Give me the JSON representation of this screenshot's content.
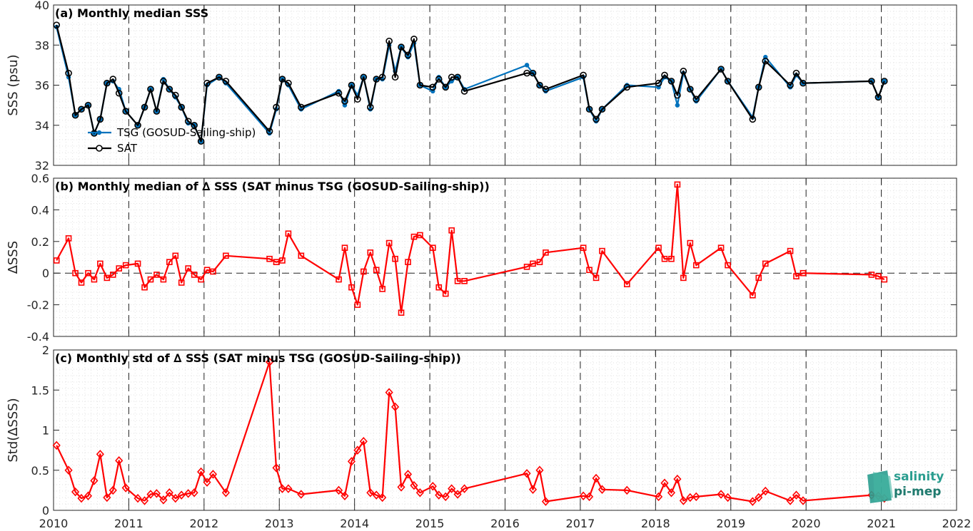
{
  "colors": {
    "tsg": "#0072BD",
    "sat": "#000000",
    "delta": "#FF0000",
    "logo": "#2a9d8f"
  },
  "logo": {
    "line1": "salinity",
    "line2": "pi-mep"
  },
  "x_axis": {
    "range": [
      2010,
      2022
    ],
    "ticks": [
      "2010",
      "2011",
      "2012",
      "2013",
      "2014",
      "2015",
      "2016",
      "2017",
      "2018",
      "2019",
      "2020",
      "2021",
      "2022"
    ]
  },
  "chart_data": [
    {
      "type": "line",
      "title": "(a) Monthly median SSS",
      "ylabel": "SSS (psu)",
      "ylim": [
        32,
        40
      ],
      "yticks": [
        "32",
        "34",
        "36",
        "38",
        "40"
      ],
      "grid": true,
      "legend_position": "bottom-left",
      "series": [
        {
          "name": "TSG (GOSUD-Sailing-ship)",
          "marker": "dot",
          "x": [
            2010.04,
            2010.2,
            2010.29,
            2010.37,
            2010.46,
            2010.54,
            2010.62,
            2010.71,
            2010.79,
            2010.87,
            2010.96,
            2011.12,
            2011.21,
            2011.29,
            2011.37,
            2011.46,
            2011.54,
            2011.62,
            2011.7,
            2011.79,
            2011.87,
            2011.96,
            2012.04,
            2012.2,
            2012.29,
            2012.87,
            2012.96,
            2013.04,
            2013.12,
            2013.29,
            2013.79,
            2013.87,
            2013.96,
            2014.04,
            2014.12,
            2014.21,
            2014.29,
            2014.37,
            2014.46,
            2014.54,
            2014.62,
            2014.71,
            2014.79,
            2014.87,
            2015.04,
            2015.12,
            2015.21,
            2015.29,
            2015.37,
            2015.46,
            2016.29,
            2016.37,
            2016.46,
            2016.54,
            2017.04,
            2017.12,
            2017.21,
            2017.29,
            2017.62,
            2018.04,
            2018.12,
            2018.21,
            2018.29,
            2018.37,
            2018.46,
            2018.54,
            2018.87,
            2018.96,
            2019.29,
            2019.37,
            2019.46,
            2019.79,
            2019.87,
            2019.96,
            2020.87,
            2020.96,
            2021.04
          ],
          "y": [
            38.9,
            36.4,
            34.5,
            34.8,
            35.0,
            33.6,
            34.3,
            36.1,
            36.2,
            35.8,
            34.7,
            34.0,
            34.9,
            35.8,
            34.7,
            36.3,
            35.8,
            35.4,
            34.9,
            34.1,
            34.0,
            33.2,
            36.0,
            36.4,
            36.1,
            33.6,
            34.8,
            36.3,
            36.0,
            34.8,
            35.7,
            35.0,
            36.0,
            35.5,
            36.4,
            34.8,
            36.3,
            36.3,
            38.0,
            36.7,
            37.9,
            37.4,
            38.1,
            36.0,
            35.7,
            36.4,
            35.9,
            36.2,
            36.4,
            35.8,
            37.0,
            36.6,
            36.0,
            35.7,
            36.4,
            34.8,
            34.2,
            34.8,
            36.0,
            35.9,
            36.4,
            36.2,
            35.0,
            36.6,
            35.8,
            35.2,
            36.8,
            36.2,
            34.4,
            35.9,
            37.4,
            35.9,
            36.5,
            36.1,
            36.2,
            35.4,
            36.2
          ]
        },
        {
          "name": "SAT",
          "marker": "circle",
          "x": [
            2010.04,
            2010.2,
            2010.29,
            2010.37,
            2010.46,
            2010.54,
            2010.62,
            2010.71,
            2010.79,
            2010.87,
            2010.96,
            2011.12,
            2011.21,
            2011.29,
            2011.37,
            2011.46,
            2011.54,
            2011.62,
            2011.7,
            2011.79,
            2011.87,
            2011.96,
            2012.04,
            2012.2,
            2012.29,
            2012.87,
            2012.96,
            2013.04,
            2013.12,
            2013.29,
            2013.79,
            2013.87,
            2013.96,
            2014.04,
            2014.12,
            2014.21,
            2014.29,
            2014.37,
            2014.46,
            2014.54,
            2014.62,
            2014.71,
            2014.79,
            2014.87,
            2015.04,
            2015.12,
            2015.21,
            2015.29,
            2015.37,
            2015.46,
            2016.29,
            2016.37,
            2016.46,
            2016.54,
            2017.04,
            2017.12,
            2017.21,
            2017.29,
            2017.62,
            2018.04,
            2018.12,
            2018.21,
            2018.29,
            2018.37,
            2018.46,
            2018.54,
            2018.87,
            2018.96,
            2019.29,
            2019.37,
            2019.46,
            2019.79,
            2019.87,
            2019.96,
            2020.87,
            2020.96,
            2021.04
          ],
          "y": [
            39.0,
            36.6,
            34.5,
            34.8,
            35.0,
            33.6,
            34.3,
            36.1,
            36.3,
            35.6,
            34.7,
            34.0,
            34.9,
            35.8,
            34.7,
            36.2,
            35.8,
            35.5,
            34.9,
            34.2,
            34.0,
            33.2,
            36.1,
            36.4,
            36.2,
            33.7,
            34.9,
            36.3,
            36.1,
            34.9,
            35.6,
            35.2,
            36.0,
            35.3,
            36.4,
            34.9,
            36.3,
            36.4,
            38.2,
            36.4,
            37.9,
            37.5,
            38.3,
            36.0,
            35.9,
            36.3,
            35.9,
            36.4,
            36.4,
            35.7,
            36.6,
            36.6,
            36.0,
            35.8,
            36.5,
            34.8,
            34.3,
            34.8,
            35.9,
            36.1,
            36.5,
            36.2,
            35.5,
            36.7,
            35.8,
            35.3,
            36.8,
            36.2,
            34.3,
            35.9,
            37.2,
            36.0,
            36.6,
            36.1,
            36.2,
            35.4,
            36.2
          ]
        }
      ]
    },
    {
      "type": "line",
      "title": "(b) Monthly median of ∆ SSS (SAT minus TSG (GOSUD-Sailing-ship))",
      "ylabel": "∆SSS",
      "ylim": [
        -0.4,
        0.6
      ],
      "yticks": [
        "-0.4",
        "-0.2",
        "0",
        "0.2",
        "0.4",
        "0.6"
      ],
      "grid": true,
      "zero_line": true,
      "series": [
        {
          "name": "",
          "marker": "square",
          "x": [
            2010.04,
            2010.2,
            2010.29,
            2010.37,
            2010.46,
            2010.54,
            2010.62,
            2010.71,
            2010.79,
            2010.87,
            2010.96,
            2011.12,
            2011.21,
            2011.29,
            2011.37,
            2011.46,
            2011.54,
            2011.62,
            2011.7,
            2011.79,
            2011.87,
            2011.96,
            2012.04,
            2012.12,
            2012.29,
            2012.87,
            2012.96,
            2013.04,
            2013.12,
            2013.29,
            2013.79,
            2013.87,
            2013.96,
            2014.04,
            2014.12,
            2014.21,
            2014.29,
            2014.37,
            2014.46,
            2014.54,
            2014.62,
            2014.71,
            2014.79,
            2014.87,
            2015.04,
            2015.12,
            2015.21,
            2015.29,
            2015.37,
            2015.46,
            2016.29,
            2016.37,
            2016.46,
            2016.54,
            2017.04,
            2017.12,
            2017.21,
            2017.29,
            2017.62,
            2018.04,
            2018.12,
            2018.21,
            2018.29,
            2018.37,
            2018.46,
            2018.54,
            2018.87,
            2018.96,
            2019.29,
            2019.37,
            2019.46,
            2019.79,
            2019.87,
            2019.96,
            2020.87,
            2020.96,
            2021.04
          ],
          "y": [
            0.08,
            0.22,
            0.0,
            -0.06,
            0.0,
            -0.04,
            0.06,
            -0.03,
            -0.01,
            0.03,
            0.05,
            0.06,
            -0.09,
            -0.04,
            -0.01,
            -0.04,
            0.07,
            0.11,
            -0.06,
            0.03,
            -0.01,
            -0.04,
            0.02,
            0.01,
            0.11,
            0.09,
            0.07,
            0.08,
            0.25,
            0.11,
            -0.04,
            0.16,
            -0.09,
            -0.2,
            0.01,
            0.13,
            0.02,
            -0.1,
            0.19,
            0.09,
            -0.25,
            0.07,
            0.23,
            0.24,
            0.16,
            -0.09,
            -0.13,
            0.27,
            -0.05,
            -0.05,
            0.04,
            0.06,
            0.07,
            0.13,
            0.16,
            0.02,
            -0.03,
            0.14,
            -0.07,
            0.16,
            0.09,
            0.09,
            0.56,
            -0.03,
            0.19,
            0.05,
            0.16,
            0.05,
            -0.14,
            -0.03,
            0.06,
            0.14,
            -0.02,
            0.0,
            -0.01,
            -0.02,
            -0.04
          ]
        }
      ]
    },
    {
      "type": "line",
      "title": "(c) Monthly std of ∆ SSS (SAT minus TSG (GOSUD-Sailing-ship))",
      "ylabel": "Std(∆SSS)",
      "ylim": [
        0,
        2
      ],
      "yticks": [
        "0",
        "0.5",
        "1",
        "1.5",
        "2"
      ],
      "grid": true,
      "series": [
        {
          "name": "",
          "marker": "diamond",
          "x": [
            2010.04,
            2010.2,
            2010.29,
            2010.37,
            2010.46,
            2010.54,
            2010.62,
            2010.71,
            2010.79,
            2010.87,
            2010.96,
            2011.12,
            2011.21,
            2011.29,
            2011.37,
            2011.46,
            2011.54,
            2011.62,
            2011.7,
            2011.79,
            2011.87,
            2011.96,
            2012.04,
            2012.12,
            2012.29,
            2012.87,
            2012.96,
            2013.04,
            2013.12,
            2013.29,
            2013.79,
            2013.87,
            2013.96,
            2014.04,
            2014.12,
            2014.21,
            2014.29,
            2014.37,
            2014.46,
            2014.54,
            2014.62,
            2014.71,
            2014.79,
            2014.87,
            2015.04,
            2015.12,
            2015.21,
            2015.29,
            2015.37,
            2015.46,
            2016.29,
            2016.37,
            2016.46,
            2016.54,
            2017.04,
            2017.12,
            2017.21,
            2017.29,
            2017.62,
            2018.04,
            2018.12,
            2018.21,
            2018.29,
            2018.37,
            2018.46,
            2018.54,
            2018.87,
            2018.96,
            2019.29,
            2019.37,
            2019.46,
            2019.79,
            2019.87,
            2019.96,
            2020.87,
            2020.96,
            2021.04
          ],
          "y": [
            0.81,
            0.5,
            0.23,
            0.15,
            0.18,
            0.37,
            0.7,
            0.16,
            0.25,
            0.62,
            0.28,
            0.15,
            0.12,
            0.2,
            0.21,
            0.13,
            0.22,
            0.15,
            0.19,
            0.21,
            0.22,
            0.48,
            0.35,
            0.45,
            0.22,
            1.85,
            0.53,
            0.27,
            0.27,
            0.2,
            0.25,
            0.18,
            0.61,
            0.75,
            0.86,
            0.22,
            0.19,
            0.16,
            1.47,
            1.29,
            0.29,
            0.45,
            0.31,
            0.22,
            0.3,
            0.19,
            0.17,
            0.27,
            0.2,
            0.27,
            0.46,
            0.26,
            0.5,
            0.11,
            0.18,
            0.17,
            0.4,
            0.26,
            0.25,
            0.17,
            0.34,
            0.22,
            0.39,
            0.12,
            0.16,
            0.17,
            0.2,
            0.16,
            0.11,
            0.16,
            0.24,
            0.12,
            0.19,
            0.12,
            0.19,
            0.18,
            0.15
          ]
        }
      ]
    }
  ]
}
